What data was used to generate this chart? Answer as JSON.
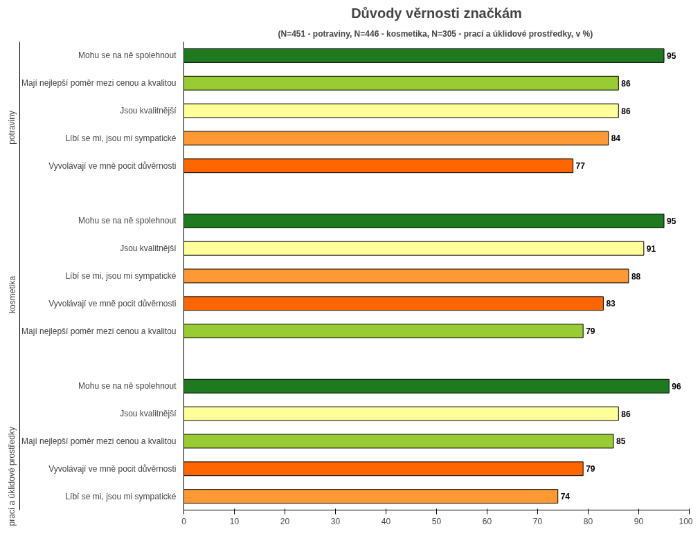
{
  "chart_data": {
    "type": "bar",
    "orientation": "horizontal",
    "title": "Důvody věrnosti značkám",
    "subtitle": "(N=451 - potraviny, N=446 - kosmetika, N=305 - prací a úklidové prostředky, v  %)",
    "categories": [
      "Mohu se na ně spolehnout",
      "Mají nejlepší poměr mezi cenou a kvalitou",
      "Jsou kvalitnější",
      "Líbí se mi, jsou mi sympatické",
      "Vyvolávají ve mně pocit důvěrnosti",
      null,
      "Mohu se na ně spolehnout",
      "Jsou kvalitnější",
      "Líbí se mi, jsou mi sympatické",
      "Vyvolávají ve mně pocit důvěrnosti",
      "Mají nejlepší poměr mezi cenou a kvalitou",
      null,
      "Mohu se na ně spolehnout",
      "Jsou kvalitnější",
      "Mají nejlepší poměr mezi cenou a kvalitou",
      "Vyvolávají ve mně pocit důvěrnosti",
      "Líbí se mi, jsou mi sympatické"
    ],
    "values": [
      95,
      86,
      86,
      84,
      77,
      null,
      95,
      91,
      88,
      83,
      79,
      null,
      96,
      86,
      85,
      79,
      74
    ],
    "colors": [
      "#1f7a1f",
      "#99cc33",
      "#ffff99",
      "#ff9933",
      "#ff6600",
      null,
      "#1f7a1f",
      "#ffff99",
      "#ff9933",
      "#ff6600",
      "#99cc33",
      null,
      "#1f7a1f",
      "#ffff99",
      "#99cc33",
      "#ff6600",
      "#ff9933"
    ],
    "annotations": [
      "potraviny",
      "kosmetika",
      "prací a úklidové prostředky"
    ],
    "xlim": [
      0,
      100
    ],
    "xticks": [
      0,
      10,
      20,
      30,
      40,
      50,
      60,
      70,
      80,
      90,
      100
    ],
    "data_labels": true,
    "grid": false
  }
}
